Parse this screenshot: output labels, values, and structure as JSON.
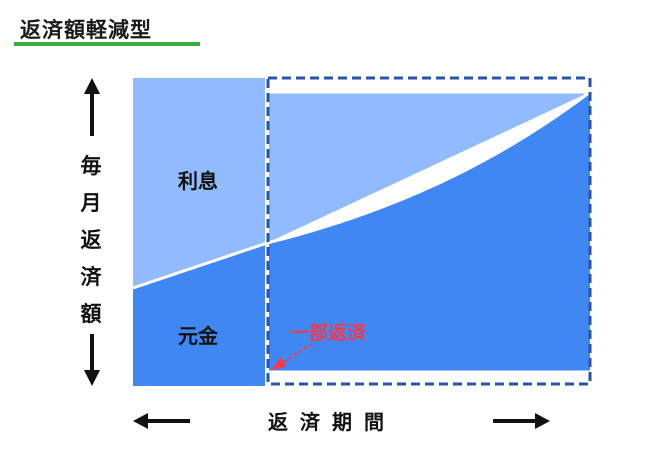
{
  "title": "返済額軽減型",
  "y_axis_label": [
    "毎",
    "月",
    "返",
    "済",
    "額"
  ],
  "x_axis_label": "返済期間",
  "regions": {
    "interest": "利息",
    "principal": "元金"
  },
  "callout": "一部返済",
  "colors": {
    "interest": "#92bbff",
    "principal": "#4187f4",
    "border_dashed": "#2755a8",
    "callout": "#ef3a4f",
    "title_underline": "#3cac3c"
  }
}
